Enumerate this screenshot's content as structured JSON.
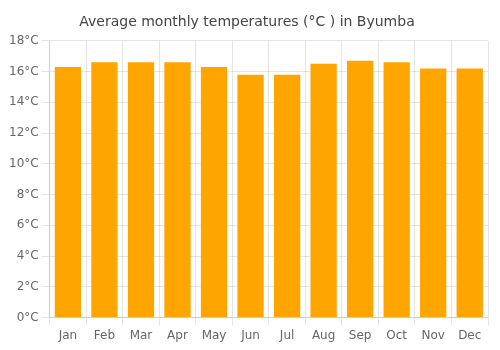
{
  "chart_data": {
    "type": "bar",
    "title": "Average monthly temperatures (°C ) in Byumba",
    "categories": [
      "Jan",
      "Feb",
      "Mar",
      "Apr",
      "May",
      "Jun",
      "Jul",
      "Aug",
      "Sep",
      "Oct",
      "Nov",
      "Dec"
    ],
    "values": [
      16.3,
      16.6,
      16.6,
      16.6,
      16.3,
      15.8,
      15.8,
      16.5,
      16.7,
      16.6,
      16.2,
      16.2
    ],
    "color": "#FFA500",
    "ylim": [
      0,
      18
    ],
    "yticks": [
      {
        "value": 0,
        "label": "0°C"
      },
      {
        "value": 2,
        "label": "2°C"
      },
      {
        "value": 4,
        "label": "4°C"
      },
      {
        "value": 6,
        "label": "6°C"
      },
      {
        "value": 8,
        "label": "8°C"
      },
      {
        "value": 10,
        "label": "10°C"
      },
      {
        "value": 12,
        "label": "12°C"
      },
      {
        "value": 14,
        "label": "14°C"
      },
      {
        "value": 16,
        "label": "16°C"
      },
      {
        "value": 18,
        "label": "18°C"
      }
    ],
    "grid": true
  }
}
